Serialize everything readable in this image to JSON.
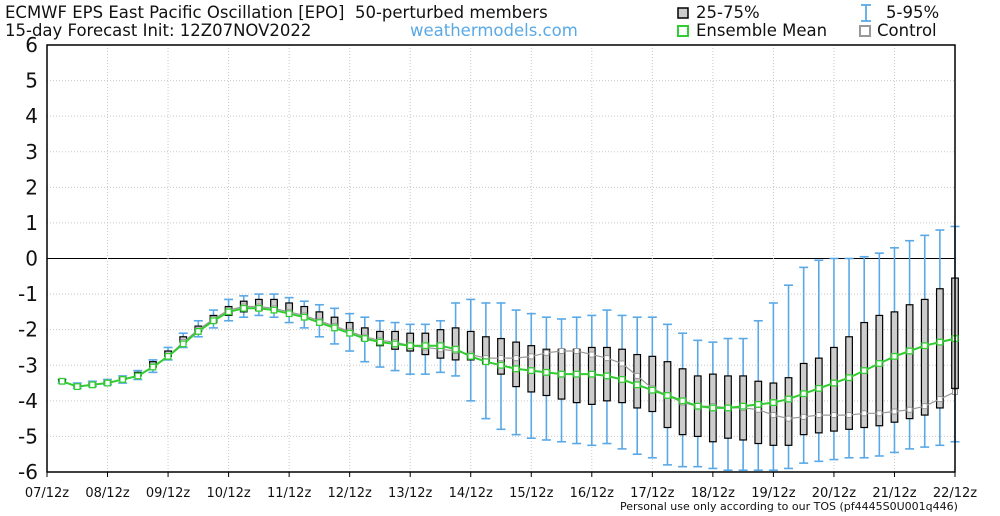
{
  "header": {
    "title": "ECMWF EPS East Pacific Oscillation [EPO]",
    "members": "50-perturbed members",
    "init": "15-day Forecast Init: 12Z07NOV2022",
    "site": "weathermodels.com"
  },
  "legend": {
    "iqr": "25-75%",
    "range": "5-95%",
    "mean": "Ensemble Mean",
    "control": "Control"
  },
  "footer": {
    "tos": "Personal use only according to our TOS (pf4445S0U001q446)"
  },
  "colors": {
    "mean": "#33cc33",
    "whisker": "#5aa9e6",
    "box_fill": "#cccccc",
    "control": "#999999",
    "box_edge": "#000000"
  },
  "chart_data": {
    "type": "boxplot",
    "title": "ECMWF EPS East Pacific Oscillation [EPO]",
    "ylim": [
      -6,
      6
    ],
    "yticks": [
      -6,
      -5,
      -4,
      -3,
      -2,
      -1,
      0,
      1,
      2,
      3,
      4,
      5,
      6
    ],
    "x_tick_labels": [
      "07/12z",
      "08/12z",
      "09/12z",
      "10/12z",
      "11/12z",
      "12/12z",
      "13/12z",
      "14/12z",
      "15/12z",
      "16/12z",
      "17/12z",
      "18/12z",
      "19/12z",
      "20/12z",
      "21/12z",
      "22/12z"
    ],
    "step_hours": 6,
    "grid": true,
    "zero_line": true,
    "series": [
      {
        "name": "25-75%",
        "q25": [
          -3.45,
          -3.6,
          -3.55,
          -3.5,
          -3.4,
          -3.3,
          -3.05,
          -2.75,
          -2.35,
          -2.05,
          -1.8,
          -1.6,
          -1.5,
          -1.45,
          -1.45,
          -1.5,
          -1.6,
          -1.75,
          -1.9,
          -2.05,
          -2.3,
          -2.45,
          -2.55,
          -2.6,
          -2.7,
          -2.8,
          -2.85,
          -2.85,
          -2.95,
          -3.25,
          -3.6,
          -3.75,
          -3.85,
          -3.95,
          -4.05,
          -4.1,
          -4.0,
          -4.05,
          -4.2,
          -4.3,
          -4.75,
          -4.95,
          -5.0,
          -5.15,
          -5.05,
          -5.1,
          -5.2,
          -5.25,
          -5.25,
          -4.95,
          -4.9,
          -4.85,
          -4.8,
          -4.75,
          -4.7,
          -4.6,
          -4.5,
          -4.4,
          -4.2,
          -3.65,
          -3.55,
          -3.55,
          -3.6,
          -3.6,
          -3.55,
          -3.45,
          -3.5,
          -3.55,
          -3.6,
          -3.65,
          -3.55,
          -3.25
        ]
      },
      {
        "name": "75%",
        "q75": [
          -3.4,
          -3.55,
          -3.5,
          -3.45,
          -3.35,
          -3.2,
          -2.9,
          -2.6,
          -2.2,
          -1.9,
          -1.6,
          -1.35,
          -1.2,
          -1.15,
          -1.15,
          -1.25,
          -1.35,
          -1.5,
          -1.65,
          -1.8,
          -1.95,
          -2.05,
          -2.05,
          -2.1,
          -2.1,
          -2.0,
          -1.95,
          -2.05,
          -2.2,
          -2.25,
          -2.35,
          -2.45,
          -2.55,
          -2.55,
          -2.55,
          -2.5,
          -2.5,
          -2.55,
          -2.7,
          -2.75,
          -2.9,
          -3.1,
          -3.3,
          -3.25,
          -3.3,
          -3.3,
          -3.45,
          -3.5,
          -3.35,
          -2.95,
          -2.8,
          -2.5,
          -2.2,
          -1.8,
          -1.6,
          -1.5,
          -1.3,
          -1.15,
          -0.85,
          -0.55,
          -0.25,
          -0.25,
          -0.45,
          -0.65,
          -0.45,
          -0.25,
          -0.2,
          -0.2,
          -0.15,
          -0.1,
          -0.05,
          -0.05
        ]
      },
      {
        "name": "5%",
        "p5": [
          -3.5,
          -3.65,
          -3.6,
          -3.55,
          -3.5,
          -3.4,
          -3.2,
          -2.85,
          -2.5,
          -2.2,
          -1.95,
          -1.75,
          -1.65,
          -1.6,
          -1.65,
          -1.8,
          -1.95,
          -2.2,
          -2.4,
          -2.6,
          -2.9,
          -3.05,
          -3.15,
          -3.25,
          -3.25,
          -3.2,
          -3.3,
          -4.0,
          -4.5,
          -4.8,
          -4.95,
          -5.05,
          -5.1,
          -5.15,
          -5.2,
          -5.25,
          -5.2,
          -5.35,
          -5.5,
          -5.6,
          -5.8,
          -5.85,
          -5.85,
          -5.9,
          -5.95,
          -5.95,
          -5.95,
          -5.95,
          -5.9,
          -5.75,
          -5.7,
          -5.65,
          -5.6,
          -5.6,
          -5.55,
          -5.45,
          -5.35,
          -5.3,
          -5.25,
          -5.15,
          -5.05,
          -5.0,
          -4.95,
          -4.85,
          -4.7,
          -4.65,
          -4.7,
          -4.75,
          -4.75,
          -4.7,
          -4.7,
          -4.75
        ]
      },
      {
        "name": "95%",
        "p95": [
          -3.4,
          -3.5,
          -3.45,
          -3.4,
          -3.3,
          -3.15,
          -2.85,
          -2.5,
          -2.1,
          -1.75,
          -1.45,
          -1.15,
          -1.05,
          -1.0,
          -1.0,
          -1.1,
          -1.2,
          -1.3,
          -1.4,
          -1.55,
          -1.65,
          -1.75,
          -1.8,
          -1.85,
          -1.85,
          -1.75,
          -1.25,
          -1.15,
          -1.25,
          -1.25,
          -1.45,
          -1.55,
          -1.65,
          -1.7,
          -1.65,
          -1.6,
          -1.45,
          -1.6,
          -1.65,
          -1.65,
          -1.85,
          -2.1,
          -2.3,
          -2.35,
          -2.25,
          -2.25,
          -1.75,
          -1.25,
          -0.75,
          -0.25,
          -0.05,
          0.0,
          0.0,
          0.05,
          0.15,
          0.3,
          0.5,
          0.65,
          0.8,
          0.9,
          0.9,
          0.85,
          0.95,
          1.0,
          1.25,
          1.55,
          1.6,
          1.6,
          1.6,
          1.65,
          1.75,
          2.0
        ]
      },
      {
        "name": "Ensemble Mean",
        "values": [
          -3.45,
          -3.6,
          -3.55,
          -3.5,
          -3.4,
          -3.3,
          -3.05,
          -2.75,
          -2.4,
          -2.05,
          -1.75,
          -1.5,
          -1.4,
          -1.4,
          -1.45,
          -1.55,
          -1.65,
          -1.8,
          -1.95,
          -2.1,
          -2.25,
          -2.35,
          -2.4,
          -2.45,
          -2.45,
          -2.45,
          -2.55,
          -2.75,
          -2.9,
          -3.0,
          -3.1,
          -3.15,
          -3.2,
          -3.25,
          -3.25,
          -3.25,
          -3.3,
          -3.4,
          -3.55,
          -3.7,
          -3.85,
          -4.0,
          -4.15,
          -4.2,
          -4.2,
          -4.15,
          -4.1,
          -4.05,
          -3.95,
          -3.8,
          -3.65,
          -3.5,
          -3.35,
          -3.15,
          -2.95,
          -2.75,
          -2.6,
          -2.45,
          -2.35,
          -2.25,
          -2.15,
          -2.05,
          -1.95,
          -1.9,
          -1.85,
          -1.8,
          -1.75,
          -1.7,
          -1.6,
          -1.55,
          -1.45,
          -1.4
        ]
      },
      {
        "name": "Control",
        "values": [
          -3.45,
          -3.6,
          -3.55,
          -3.5,
          -3.4,
          -3.3,
          -3.05,
          -2.75,
          -2.35,
          -2.0,
          -1.7,
          -1.45,
          -1.35,
          -1.35,
          -1.4,
          -1.5,
          -1.6,
          -1.75,
          -1.9,
          -2.05,
          -2.2,
          -2.3,
          -2.35,
          -2.45,
          -2.5,
          -2.55,
          -2.6,
          -2.7,
          -2.8,
          -2.8,
          -2.8,
          -2.75,
          -2.65,
          -2.6,
          -2.6,
          -2.7,
          -2.8,
          -2.95,
          -3.3,
          -3.65,
          -3.85,
          -4.05,
          -4.15,
          -4.15,
          -4.2,
          -4.2,
          -4.25,
          -4.4,
          -4.5,
          -4.45,
          -4.4,
          -4.4,
          -4.4,
          -4.35,
          -4.35,
          -4.3,
          -4.25,
          -4.15,
          -3.95,
          -3.75,
          -3.5,
          -3.25,
          -3.05,
          -2.9,
          -2.75,
          -2.55,
          -2.35,
          -2.15,
          -2.0,
          -1.85,
          -1.7,
          -1.5
        ]
      }
    ]
  }
}
